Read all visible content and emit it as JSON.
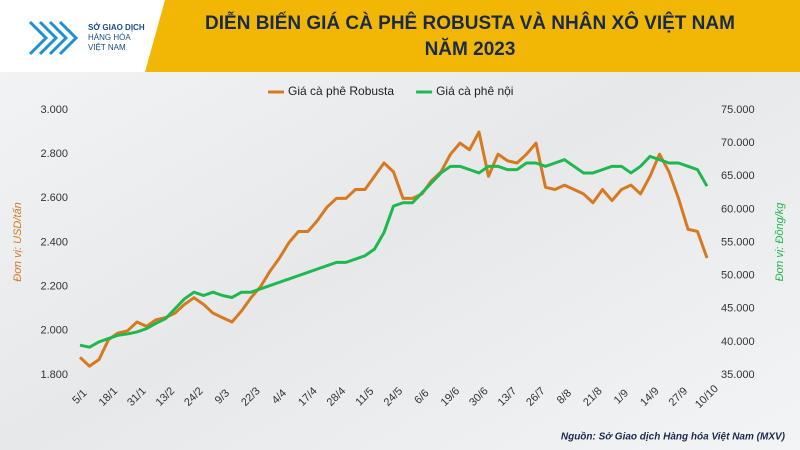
{
  "logo_text": [
    "SỞ GIAO DỊCH",
    "HÀNG HÓA",
    "VIỆT NAM"
  ],
  "chart_data": {
    "type": "line",
    "title": [
      "DIỄN BIẾN GIÁ CÀ PHÊ ROBUSTA VÀ NHÂN XÔ VIỆT NAM",
      "NĂM 2023"
    ],
    "ylabel": "Đơn vị: USD/tấn",
    "y2label": "Đơn vị: Đồng/kg",
    "source": "Nguồn: Sở Giao dịch Hàng hóa Việt Nam (MXV)",
    "legend": "top",
    "grid": false,
    "categories": [
      "5/1",
      null,
      null,
      "18/1",
      null,
      null,
      "31/1",
      null,
      null,
      "13/2",
      null,
      null,
      "24/2",
      null,
      null,
      "9/3",
      null,
      null,
      "22/3",
      null,
      null,
      "4/4",
      null,
      null,
      "17/4",
      null,
      null,
      "28/4",
      null,
      null,
      "11/5",
      null,
      null,
      "24/5",
      null,
      null,
      "6/6",
      null,
      null,
      "19/6",
      null,
      null,
      "30/6",
      null,
      null,
      "13/7",
      null,
      null,
      "26/7",
      null,
      null,
      "8/8",
      null,
      null,
      "21/8",
      null,
      null,
      "1/9",
      null,
      null,
      "14/9",
      null,
      null,
      "27/9",
      null,
      null,
      "10/10"
    ],
    "series": [
      {
        "name": "Giá cà phê Robusta",
        "color": "#d9791f",
        "values": [
          1880,
          1840,
          1870,
          1960,
          1990,
          2000,
          2040,
          2020,
          2050,
          2060,
          2080,
          2120,
          2150,
          2120,
          2080,
          2060,
          2040,
          2090,
          2150,
          2200,
          2270,
          2330,
          2400,
          2450,
          2450,
          2500,
          2560,
          2600,
          2600,
          2640,
          2640,
          2700,
          2760,
          2720,
          2600,
          2600,
          2620,
          2680,
          2720,
          2800,
          2850,
          2820,
          2900,
          2700,
          2800,
          2770,
          2760,
          2800,
          2850,
          2650,
          2640,
          2660,
          2640,
          2620,
          2580,
          2640,
          2590,
          2640,
          2660,
          2620,
          2700,
          2800,
          2720,
          2600,
          2460,
          2450,
          2330
        ]
      },
      {
        "name": "Giá cà phê nội",
        "color": "#1fb84f",
        "axis": "y2",
        "values": [
          39500,
          39200,
          40000,
          40500,
          41000,
          41200,
          41500,
          42000,
          42800,
          43500,
          45000,
          46500,
          47500,
          47000,
          47500,
          47000,
          46700,
          47500,
          47500,
          48000,
          48500,
          49000,
          49500,
          50000,
          50500,
          51000,
          51500,
          52000,
          52000,
          52500,
          53000,
          54000,
          56500,
          60500,
          61000,
          61000,
          62500,
          64000,
          65500,
          66500,
          66500,
          66000,
          65500,
          66500,
          66500,
          66000,
          66000,
          67000,
          67000,
          66500,
          67000,
          67500,
          66500,
          65500,
          65500,
          66000,
          66500,
          66500,
          65500,
          66500,
          68000,
          67500,
          67000,
          67000,
          66500,
          66000,
          63500
        ]
      }
    ],
    "ylim": [
      1800,
      3000
    ],
    "yticks": [
      {
        "value": 1800,
        "label": "1.800"
      },
      {
        "value": 2000,
        "label": "2.000"
      },
      {
        "value": 2200,
        "label": "2.200"
      },
      {
        "value": 2400,
        "label": "2.400"
      },
      {
        "value": 2600,
        "label": "2.600"
      },
      {
        "value": 2800,
        "label": "2.800"
      },
      {
        "value": 3000,
        "label": "3.000"
      }
    ],
    "y2lim": [
      35000,
      75000
    ],
    "y2ticks": [
      {
        "value": 35000,
        "label": "35.000"
      },
      {
        "value": 40000,
        "label": "40.000"
      },
      {
        "value": 45000,
        "label": "45.000"
      },
      {
        "value": 50000,
        "label": "50.000"
      },
      {
        "value": 55000,
        "label": "55.000"
      },
      {
        "value": 60000,
        "label": "60.000"
      },
      {
        "value": 65000,
        "label": "65.000"
      },
      {
        "value": 70000,
        "label": "70.000"
      },
      {
        "value": 75000,
        "label": "75.000"
      }
    ]
  }
}
